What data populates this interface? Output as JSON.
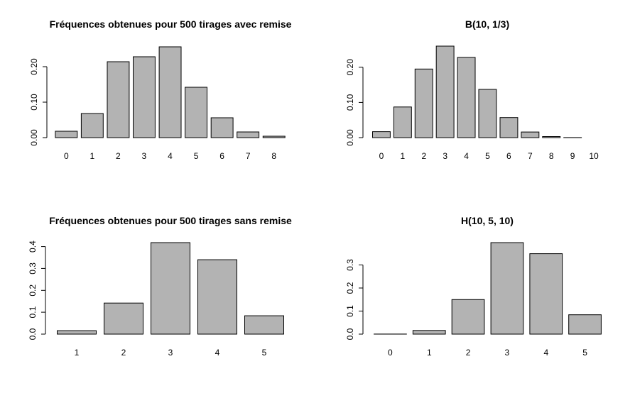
{
  "colors": {
    "bar_fill": "#b3b3b3",
    "bar_stroke": "#000000",
    "background": "#ffffff"
  },
  "chart_data": [
    {
      "type": "bar",
      "title": "Fréquences obtenues pour 500 tirages avec remise",
      "categories": [
        "0",
        "1",
        "2",
        "3",
        "4",
        "5",
        "6",
        "7",
        "8"
      ],
      "values": [
        0.018,
        0.068,
        0.214,
        0.228,
        0.256,
        0.142,
        0.056,
        0.016,
        0.004
      ],
      "yticks": [
        "0.00",
        "0.10",
        "0.20"
      ],
      "ylim": [
        0,
        0.256
      ],
      "xlabel": "",
      "ylabel": ""
    },
    {
      "type": "bar",
      "title": "B(10, 1/3)",
      "categories": [
        "0",
        "1",
        "2",
        "3",
        "4",
        "5",
        "6",
        "7",
        "8",
        "9",
        "10"
      ],
      "values": [
        0.017,
        0.087,
        0.195,
        0.26,
        0.228,
        0.137,
        0.057,
        0.016,
        0.003,
        0.0003,
        2e-05
      ],
      "yticks": [
        "0.00",
        "0.10",
        "0.20"
      ],
      "ylim": [
        0,
        0.26
      ],
      "xlabel": "",
      "ylabel": ""
    },
    {
      "type": "bar",
      "title": "Fréquences obtenues pour 500 tirages sans remise",
      "categories": [
        "1",
        "2",
        "3",
        "4",
        "5"
      ],
      "values": [
        0.016,
        0.142,
        0.418,
        0.34,
        0.084
      ],
      "yticks": [
        "0.0",
        "0.1",
        "0.2",
        "0.3",
        "0.4"
      ],
      "ylim": [
        0,
        0.418
      ],
      "xlabel": "",
      "ylabel": ""
    },
    {
      "type": "bar",
      "title": "H(10, 5, 10)",
      "categories": [
        "0",
        "1",
        "2",
        "3",
        "4",
        "5"
      ],
      "values": [
        0.0004,
        0.016,
        0.15,
        0.397,
        0.349,
        0.084
      ],
      "yticks": [
        "0.0",
        "0.1",
        "0.2",
        "0.3"
      ],
      "ylim": [
        0,
        0.397
      ],
      "xlabel": "",
      "ylabel": ""
    }
  ]
}
